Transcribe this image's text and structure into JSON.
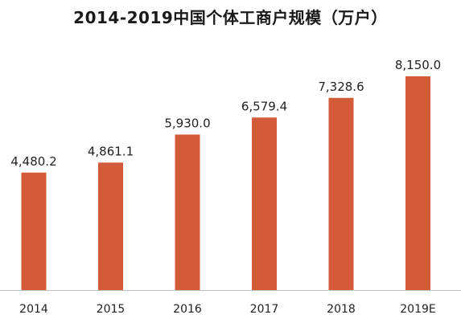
{
  "chart_data": {
    "type": "bar",
    "title": "2014-2019中国个体工商户规模（万户）",
    "categories": [
      "2014",
      "2015",
      "2016",
      "2017",
      "2018",
      "2019E"
    ],
    "values": [
      4480.2,
      4861.1,
      5930.0,
      6579.4,
      7328.6,
      8150.0
    ],
    "value_labels": [
      "4,480.2",
      "4,861.1",
      "5,930.0",
      "6,579.4",
      "7,328.6",
      "8,150.0"
    ],
    "xlabel": "",
    "ylabel": "",
    "ylim": [
      0,
      10000
    ],
    "grid": false,
    "legend": "none",
    "bar_color": "#D35B3A",
    "axis_color": "#BFBFBF"
  }
}
